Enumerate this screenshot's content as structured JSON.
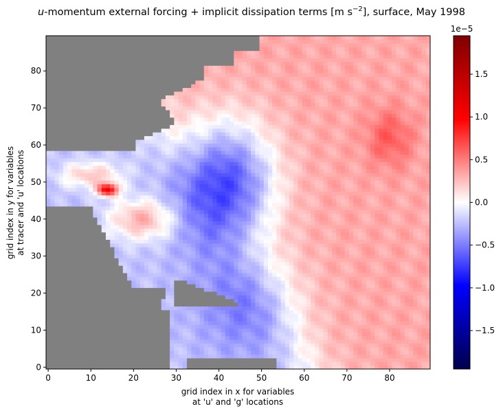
{
  "chart_data": {
    "type": "heatmap",
    "title_var": "u",
    "title_rest": "-momentum external forcing + implicit dissipation terms [m s",
    "title_exp": "−2",
    "title_tail": "], surface, May 1998",
    "xlabel_line1": "grid index in x for variables",
    "xlabel_line2": "at 'u' and 'g' locations",
    "ylabel_line1": "grid index in y for variables",
    "ylabel_line2": "at tracer and 'u' locations",
    "xlim": [
      -0.5,
      89.5
    ],
    "ylim": [
      -0.5,
      89.5
    ],
    "x_ticks": [
      0,
      10,
      20,
      30,
      40,
      50,
      60,
      70,
      80
    ],
    "y_ticks": [
      0,
      10,
      20,
      30,
      40,
      50,
      60,
      70,
      80
    ],
    "colorbar": {
      "colormap": "seismic",
      "vmin": -1.95e-05,
      "vmax": 1.95e-05,
      "offset_text": "1e−5",
      "ticks": [
        1.5,
        1.0,
        0.5,
        0.0,
        -0.5,
        -1.0,
        -1.5
      ],
      "tick_labels": [
        "1.5",
        "1.0",
        "0.5",
        "0.0",
        "−0.5",
        "−1.0",
        "−1.5"
      ]
    },
    "land_color": "#808080",
    "field_description_values_units": "1e-5 m s^-2",
    "field_regions": [
      {
        "name": "west coastal positive band",
        "value": 0.35
      },
      {
        "name": "strait peak",
        "value": 1.6
      },
      {
        "name": "lower coastal positive band",
        "value": 0.5
      },
      {
        "name": "central negative core",
        "value": -0.9
      },
      {
        "name": "eastern positive region",
        "value": 0.35
      }
    ]
  }
}
